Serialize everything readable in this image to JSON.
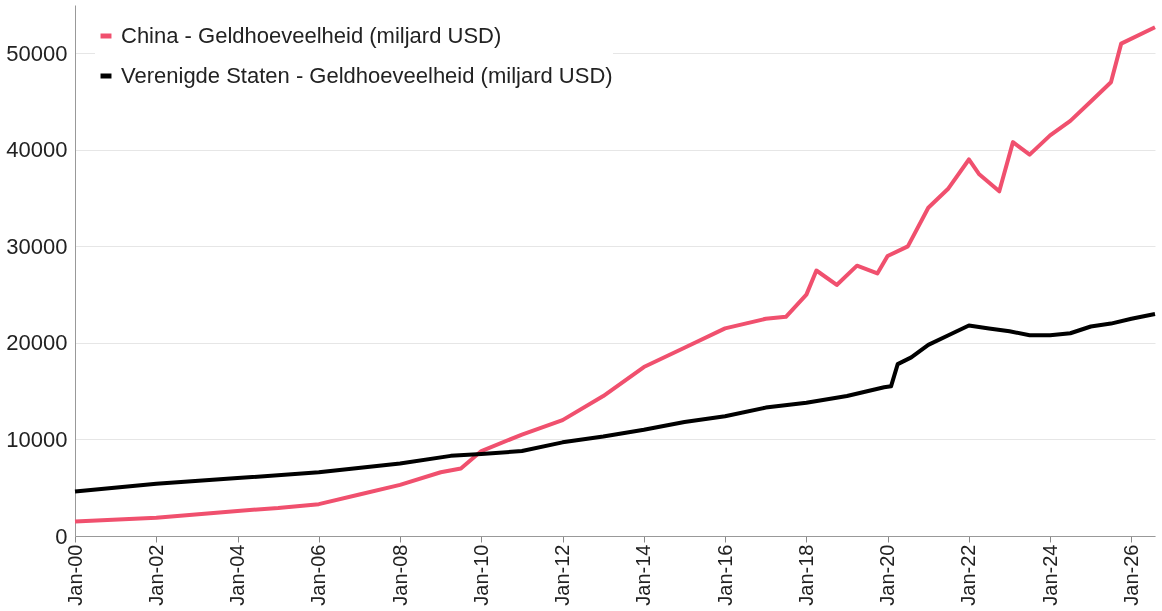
{
  "chart_data": {
    "type": "line",
    "x": [
      "2000-01",
      "2002-01",
      "2004-01",
      "2005-01",
      "2006-01",
      "2007-01",
      "2008-01",
      "2009-01",
      "2009-07",
      "2010-01",
      "2011-01",
      "2012-01",
      "2013-01",
      "2014-01",
      "2015-01",
      "2016-01",
      "2017-01",
      "2017-07",
      "2018-01",
      "2018-04",
      "2018-10",
      "2019-04",
      "2019-10",
      "2020-01",
      "2020-07",
      "2021-01",
      "2021-07",
      "2022-01",
      "2022-04",
      "2022-10",
      "2023-02",
      "2023-07",
      "2024-01",
      "2024-07",
      "2025-01",
      "2025-07",
      "2025-10",
      "2026-08"
    ],
    "series": [
      {
        "name": "China - Geldhoeveelheid (miljard USD)",
        "color": "#f0506e",
        "values": [
          1500,
          1900,
          2600,
          2900,
          3300,
          4300,
          5300,
          6600,
          7000,
          8800,
          10500,
          12000,
          14500,
          17500,
          19500,
          21500,
          22500,
          22700,
          25000,
          27500,
          26000,
          28000,
          27200,
          29000,
          30000,
          34000,
          36000,
          39000,
          37500,
          35700,
          40800,
          39500,
          41500,
          43000,
          45000,
          47000,
          51000,
          52700
        ]
      },
      {
        "name": "Verenigde Staten - Geldhoeveelheid (miljard USD)",
        "color": "#000000",
        "x": [
          "2000-01",
          "2002-01",
          "2004-01",
          "2006-01",
          "2008-01",
          "2009-04",
          "2010-01",
          "2011-01",
          "2012-01",
          "2013-01",
          "2014-01",
          "2015-01",
          "2016-01",
          "2017-01",
          "2018-01",
          "2019-01",
          "2019-12",
          "2020-02",
          "2020-04",
          "2020-08",
          "2021-01",
          "2021-07",
          "2022-01",
          "2022-07",
          "2023-01",
          "2023-07",
          "2024-01",
          "2024-07",
          "2025-01",
          "2025-07",
          "2026-01",
          "2026-08"
        ],
        "values": [
          4600,
          5400,
          6000,
          6600,
          7500,
          8300,
          8500,
          8800,
          9700,
          10300,
          11000,
          11800,
          12400,
          13300,
          13800,
          14500,
          15400,
          15500,
          17800,
          18500,
          19800,
          20800,
          21800,
          21500,
          21200,
          20800,
          20800,
          21000,
          21700,
          22000,
          22500,
          23000
        ]
      }
    ],
    "xlim": [
      "2000-01",
      "2026-08"
    ],
    "xticks": [
      {
        "value": "2000-01",
        "label": "Jan-00"
      },
      {
        "value": "2002-01",
        "label": "Jan-02"
      },
      {
        "value": "2004-01",
        "label": "Jan-04"
      },
      {
        "value": "2006-01",
        "label": "Jan-06"
      },
      {
        "value": "2008-01",
        "label": "Jan-08"
      },
      {
        "value": "2010-01",
        "label": "Jan-10"
      },
      {
        "value": "2012-01",
        "label": "Jan-12"
      },
      {
        "value": "2014-01",
        "label": "Jan-14"
      },
      {
        "value": "2016-01",
        "label": "Jan-16"
      },
      {
        "value": "2018-01",
        "label": "Jan-18"
      },
      {
        "value": "2020-01",
        "label": "Jan-20"
      },
      {
        "value": "2022-01",
        "label": "Jan-22"
      },
      {
        "value": "2024-01",
        "label": "Jan-24"
      },
      {
        "value": "2026-01",
        "label": "Jan-26"
      }
    ],
    "ylim": [
      0,
      55000
    ],
    "yticks": [
      0,
      10000,
      20000,
      30000,
      40000,
      50000
    ],
    "grid": "y",
    "legend": "top left",
    "marker": "none",
    "line_style": "solid"
  }
}
